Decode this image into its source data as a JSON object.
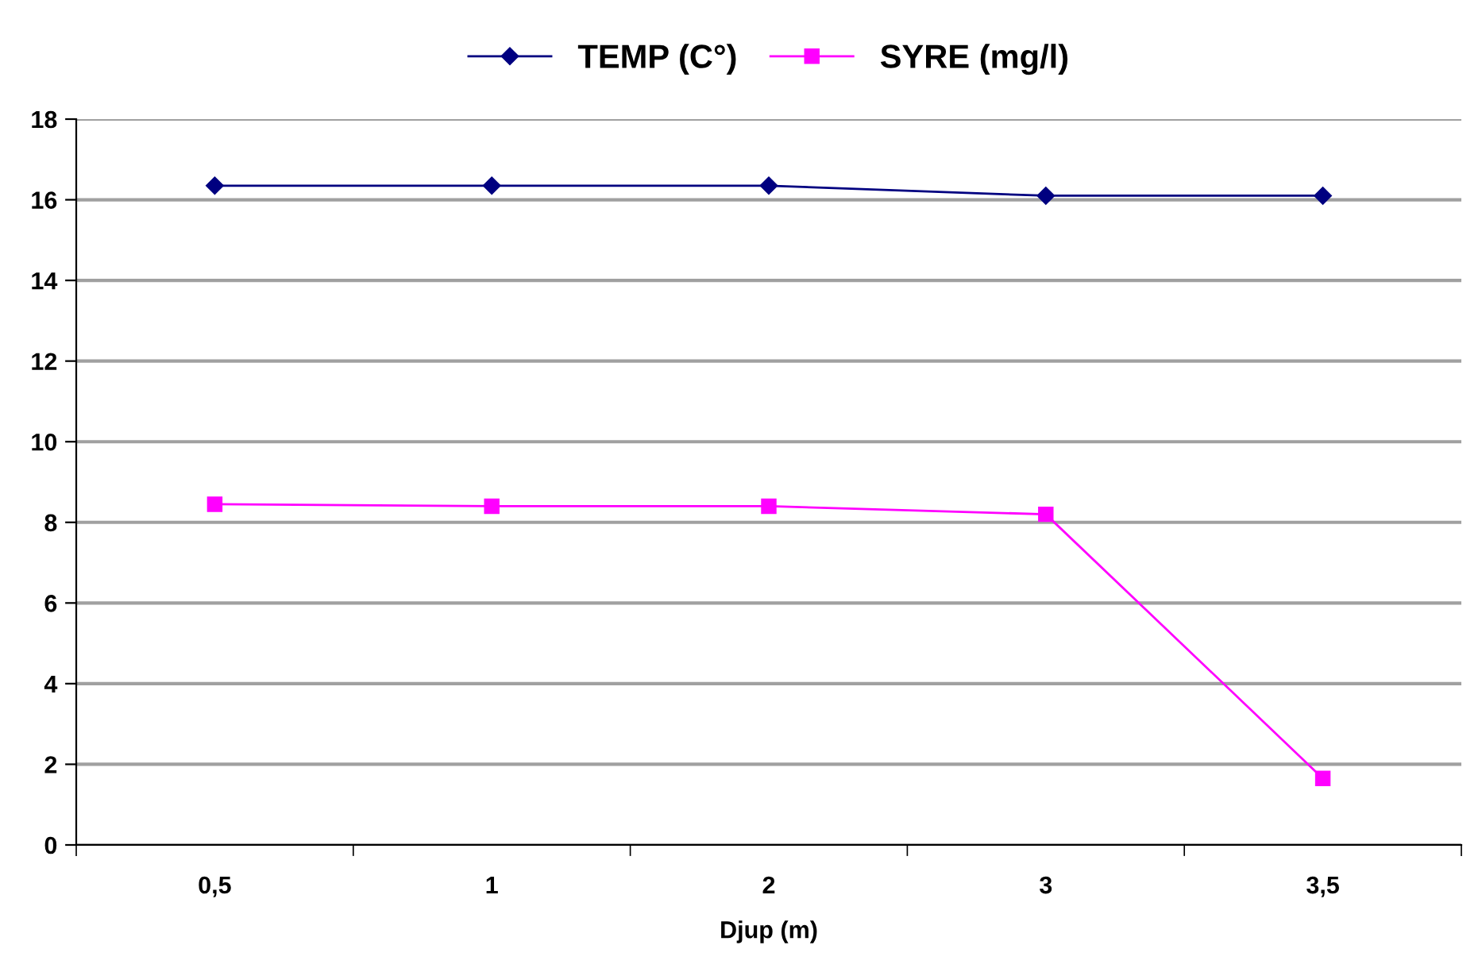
{
  "chart_data": {
    "type": "line",
    "xlabel": "Djup (m)",
    "categories": [
      "0,5",
      "1",
      "2",
      "3",
      "3,5"
    ],
    "series": [
      {
        "name": "TEMP (C°)",
        "color": "#000080",
        "marker": "diamond",
        "values": [
          16.35,
          16.35,
          16.35,
          16.1,
          16.1
        ]
      },
      {
        "name": "SYRE (mg/l)",
        "color": "#ff00ff",
        "marker": "square",
        "values": [
          8.45,
          8.4,
          8.4,
          8.2,
          1.65
        ]
      }
    ],
    "ylim": [
      0,
      18
    ],
    "yticks": [
      0,
      2,
      4,
      6,
      8,
      10,
      12,
      14,
      16,
      18
    ],
    "grid": "y",
    "legend": "top",
    "line_style": "solid"
  }
}
